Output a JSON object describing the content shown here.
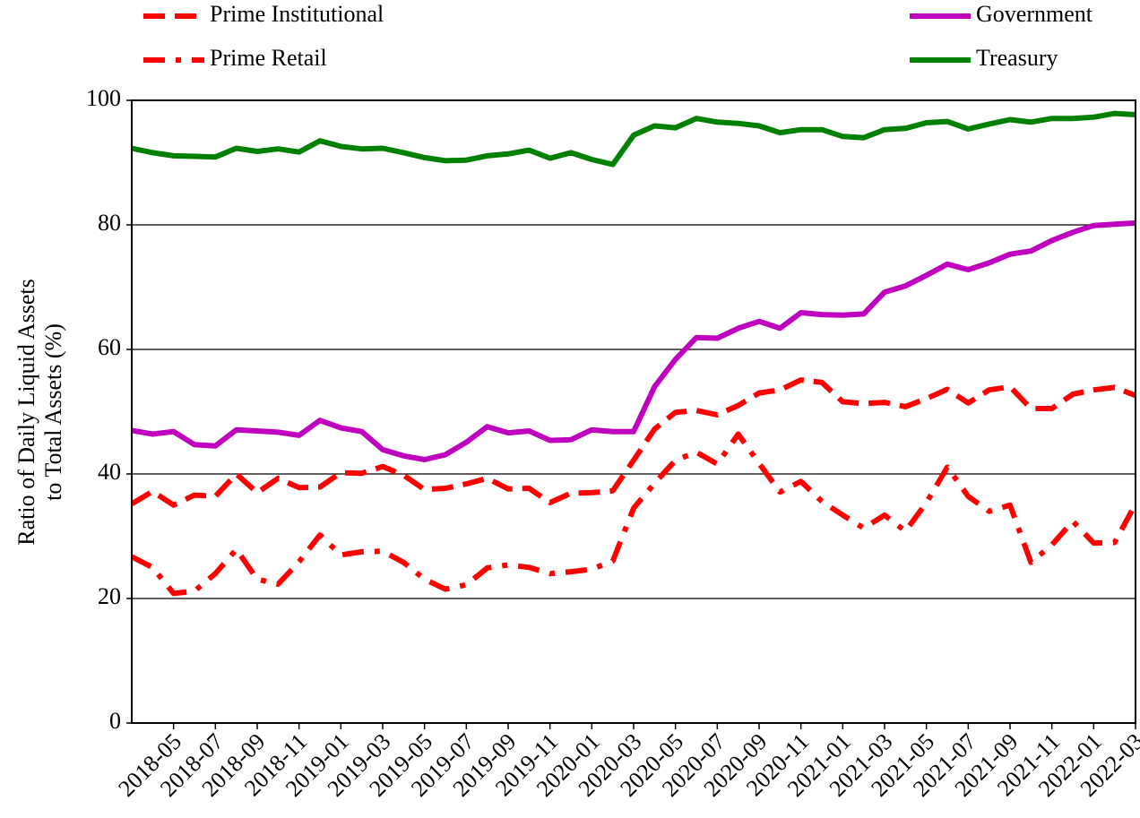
{
  "chart_data": {
    "type": "line",
    "y_label": [
      "Ratio of Daily Liquid Assets",
      "to Total Assets (%)"
    ],
    "categories": [
      null,
      null,
      "2018-05",
      null,
      "2018-07",
      null,
      "2018-09",
      null,
      "2018-11",
      null,
      "2019-01",
      null,
      "2019-03",
      null,
      "2019-05",
      null,
      "2019-07",
      null,
      "2019-09",
      null,
      "2019-11",
      null,
      "2020-01",
      null,
      "2020-03",
      null,
      "2020-05",
      null,
      "2020-07",
      null,
      "2020-09",
      null,
      "2020-11",
      null,
      "2021-01",
      null,
      "2021-03",
      null,
      "2021-05",
      null,
      "2021-07",
      null,
      "2021-09",
      null,
      "2021-11",
      null,
      "2022-01",
      null,
      "2022-03"
    ],
    "ylim": [
      0,
      100
    ],
    "yticks": [
      0,
      20,
      40,
      60,
      80,
      100
    ],
    "grid": true,
    "series": [
      {
        "name": "Prime Institutional",
        "color": "#ff0000",
        "dash": "dashed",
        "values": [
          35.2,
          37.2,
          35.0,
          36.6,
          36.4,
          40.0,
          37.0,
          39.3,
          37.8,
          37.9,
          40.2,
          40.1,
          41.2,
          39.8,
          37.5,
          37.7,
          38.4,
          39.3,
          37.6,
          37.7,
          35.4,
          36.9,
          37.0,
          37.3,
          42.2,
          47.2,
          49.9,
          50.2,
          49.5,
          51.0,
          53.0,
          53.5,
          55.1,
          54.7,
          51.6,
          51.3,
          51.5,
          50.8,
          52.1,
          53.6,
          51.4,
          53.5,
          54.0,
          50.5,
          50.5,
          52.8,
          53.5,
          53.9,
          52.6
        ]
      },
      {
        "name": "Prime Retail",
        "color": "#ff0000",
        "dash": "dashdot",
        "values": [
          26.7,
          25.0,
          20.8,
          21.2,
          24.0,
          27.9,
          23.1,
          22.3,
          25.9,
          30.2,
          27.0,
          27.5,
          27.6,
          25.8,
          23.1,
          21.5,
          22.2,
          24.9,
          25.4,
          25.0,
          24.0,
          24.3,
          24.7,
          26.0,
          34.5,
          38.5,
          42.2,
          43.5,
          41.6,
          46.4,
          41.7,
          37.1,
          38.8,
          35.6,
          33.4,
          31.3,
          33.4,
          30.8,
          35.4,
          41.1,
          36.4,
          34.0,
          35.0,
          25.8,
          28.6,
          32.4,
          28.9,
          29.0,
          35.2
        ]
      },
      {
        "name": "Government",
        "color": "#bf00bf",
        "dash": "solid",
        "values": [
          47.0,
          46.4,
          46.8,
          44.7,
          44.5,
          47.1,
          46.9,
          46.7,
          46.2,
          48.6,
          47.4,
          46.8,
          43.9,
          42.9,
          42.3,
          43.1,
          45.1,
          47.6,
          46.6,
          46.9,
          45.4,
          45.5,
          47.1,
          46.8,
          46.8,
          54.0,
          58.4,
          61.9,
          61.8,
          63.4,
          64.5,
          63.4,
          65.9,
          65.6,
          65.5,
          65.7,
          69.2,
          70.2,
          71.9,
          73.7,
          72.8,
          73.9,
          75.3,
          75.8,
          77.5,
          78.8,
          79.9,
          80.1,
          80.3
        ]
      },
      {
        "name": "Treasury",
        "color": "#008000",
        "dash": "solid",
        "values": [
          92.3,
          91.6,
          91.1,
          91.0,
          90.9,
          92.3,
          91.8,
          92.2,
          91.7,
          93.5,
          92.6,
          92.2,
          92.3,
          91.6,
          90.8,
          90.3,
          90.4,
          91.1,
          91.4,
          92.0,
          90.7,
          91.6,
          90.5,
          89.7,
          94.4,
          95.9,
          95.6,
          97.1,
          96.5,
          96.3,
          95.9,
          94.8,
          95.3,
          95.3,
          94.2,
          94.0,
          95.3,
          95.5,
          96.4,
          96.6,
          95.4,
          96.2,
          96.9,
          96.5,
          97.1,
          97.1,
          97.3,
          97.9,
          97.7
        ]
      }
    ]
  }
}
